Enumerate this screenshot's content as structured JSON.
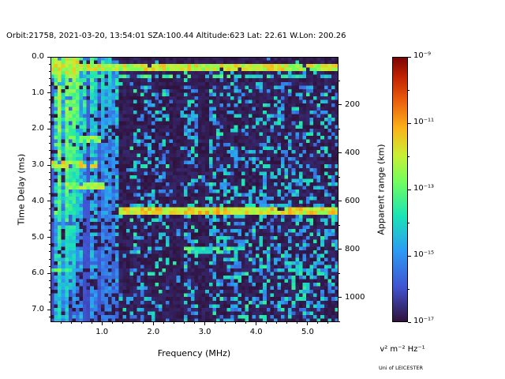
{
  "credit": "Uni of LEICESTER",
  "chart_data": {
    "type": "heatmap",
    "title": "Orbit:21758, 2021-03-20, 13:54:01 SZA:100.44 Altitude:623 Lat: 22.61 W.Lon: 200.26",
    "xlabel": "Frequency (MHz)",
    "ylabel": "Time Delay (ms)",
    "ylabel_right": "Apparent range (km)",
    "colorbar_label": "v² m⁻² Hz⁻¹",
    "x_range": [
      0.0,
      5.6
    ],
    "y_range": [
      0.0,
      7.35
    ],
    "y_axis_inverted": true,
    "x_ticks": {
      "values": [
        1.0,
        2.0,
        3.0,
        4.0,
        5.0
      ],
      "labels": [
        "1.0",
        "2.0",
        "3.0",
        "4.0",
        "5.0"
      ],
      "minor_step": 0.2
    },
    "y_ticks": {
      "values": [
        0,
        1,
        2,
        3,
        4,
        5,
        6,
        7
      ],
      "labels": [
        "0.0",
        "1.0",
        "2.0",
        "3.0",
        "4.0",
        "5.0",
        "6.0",
        "7.0"
      ],
      "minor_step": 0.2
    },
    "right_ticks": {
      "values": [
        200,
        400,
        600,
        800,
        1000
      ],
      "labels": [
        "200",
        "400",
        "600",
        "800",
        "1000"
      ],
      "km_per_ms": 150,
      "minor_step_km": 100
    },
    "colorbar": {
      "scale": "log",
      "min_exp": -17,
      "max_exp": -9,
      "label_exps": [
        -9,
        -11,
        -13,
        -15,
        -17
      ],
      "labels": [
        "10⁻⁹",
        "10⁻¹¹",
        "10⁻¹³",
        "10⁻¹⁵",
        "10⁻¹⁷"
      ]
    },
    "colormap": [
      [
        0,
        "#30123B"
      ],
      [
        0.13,
        "#4153D1"
      ],
      [
        0.27,
        "#2C9CF4"
      ],
      [
        0.4,
        "#1AE4B6"
      ],
      [
        0.53,
        "#72FE5E"
      ],
      [
        0.63,
        "#C9EF34"
      ],
      [
        0.73,
        "#FBB41A"
      ],
      [
        0.84,
        "#EA5B0C"
      ],
      [
        0.93,
        "#BE2102"
      ],
      [
        1,
        "#7A0403"
      ]
    ],
    "heatmap": {
      "nx": 80,
      "ny": 74,
      "seed": 1337,
      "background": [
        0.0,
        0.045
      ],
      "speckle": {
        "prob": 0.28,
        "min": 0.17,
        "max": 0.45,
        "freq_min": 1.3,
        "top_quiet_ms": 0.8,
        "top_quiet_factor": 0.3,
        "cloud": {
          "t_min": 3.4,
          "f_min": 2.6,
          "prob": 0.38
        }
      },
      "dark_columns": [
        [
          1.34,
          1.52
        ],
        [
          2.3,
          2.62
        ],
        [
          2.9,
          3.06
        ]
      ],
      "stripes": {
        "f_max": 1.3,
        "fill_prob": 0.8,
        "gap_prob": 0.22,
        "min": 0.15,
        "amp": 0.4,
        "depth_fade": 0.35
      },
      "vlines": [
        [
          0.18,
          7.5,
          0.72
        ],
        [
          0.3,
          7.5,
          0.68
        ],
        [
          0.42,
          6.5,
          0.65
        ],
        [
          0.55,
          5.0,
          0.62
        ],
        [
          0.68,
          3.8,
          0.6
        ],
        [
          0.82,
          2.8,
          0.58
        ],
        [
          1.0,
          2.2,
          0.52
        ],
        [
          1.15,
          1.6,
          0.5
        ]
      ],
      "bands": [
        [
          0.28,
          0.22,
          0.0,
          5.6,
          0.62,
          0.97
        ],
        [
          0.25,
          0.5,
          0.0,
          0.55,
          0.6,
          0.85
        ],
        [
          0.55,
          0.12,
          0.0,
          5.6,
          0.4,
          0.5
        ],
        [
          2.3,
          0.18,
          0.55,
          0.95,
          0.55,
          0.85
        ],
        [
          3.0,
          0.2,
          0.0,
          0.9,
          0.62,
          0.95
        ],
        [
          3.55,
          0.16,
          0.25,
          1.05,
          0.57,
          0.9
        ],
        [
          4.3,
          0.2,
          1.3,
          5.6,
          0.66,
          0.95
        ],
        [
          4.3,
          0.15,
          0.05,
          0.22,
          0.55,
          0.85
        ],
        [
          5.35,
          0.14,
          2.6,
          3.7,
          0.42,
          0.7
        ],
        [
          5.9,
          0.13,
          0.0,
          0.45,
          0.5,
          0.9
        ]
      ]
    }
  }
}
